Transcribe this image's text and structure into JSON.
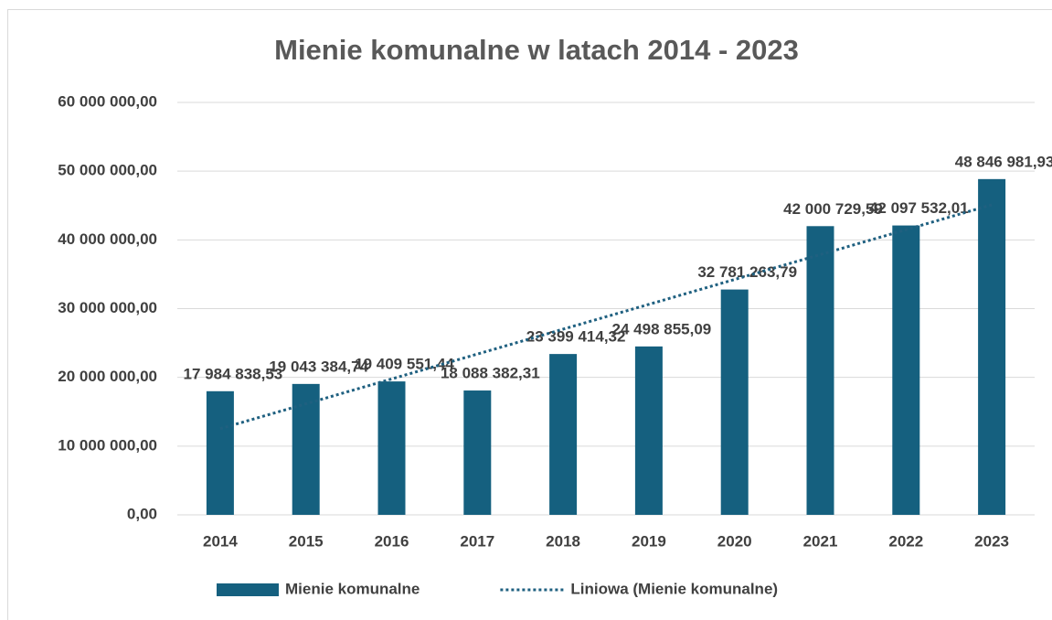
{
  "chart_data": {
    "type": "bar",
    "title": "Mienie komunalne w latach 2014 - 2023",
    "categories": [
      "2014",
      "2015",
      "2016",
      "2017",
      "2018",
      "2019",
      "2020",
      "2021",
      "2022",
      "2023"
    ],
    "series": [
      {
        "name": "Mienie komunalne",
        "type": "bar",
        "color": "#15607f",
        "values": [
          17984838.53,
          19043384.74,
          19409551.44,
          18088382.31,
          23399414.32,
          24498855.09,
          32781263.79,
          42000729.59,
          42097532.01,
          48846981.93
        ],
        "value_labels": [
          "17 984 838,53",
          "19 043 384,74",
          "19 409 551,44",
          "18 088 382,31",
          "23 399 414,32",
          "24 498 855,09",
          "32 781 263,79",
          "42 000 729,59",
          "42 097 532,01",
          "48 846 981,93"
        ]
      },
      {
        "name": "Liniowa (Mienie komunalne)",
        "type": "line",
        "color": "#1f6080",
        "values": [
          12530000,
          16150000,
          19770000,
          23390000,
          27010000,
          30620000,
          34240000,
          37860000,
          41480000,
          45110000
        ]
      }
    ],
    "ylim": [
      0,
      60000000
    ],
    "yticks": [
      {
        "value": 0,
        "label": "0,00"
      },
      {
        "value": 10000000,
        "label": "10 000 000,00"
      },
      {
        "value": 20000000,
        "label": "20 000 000,00"
      },
      {
        "value": 30000000,
        "label": "30 000 000,00"
      },
      {
        "value": 40000000,
        "label": "40 000 000,00"
      },
      {
        "value": 50000000,
        "label": "50 000 000,00"
      },
      {
        "value": 60000000,
        "label": "60 000 000,00"
      }
    ],
    "grid": true,
    "legend": "bottom"
  }
}
